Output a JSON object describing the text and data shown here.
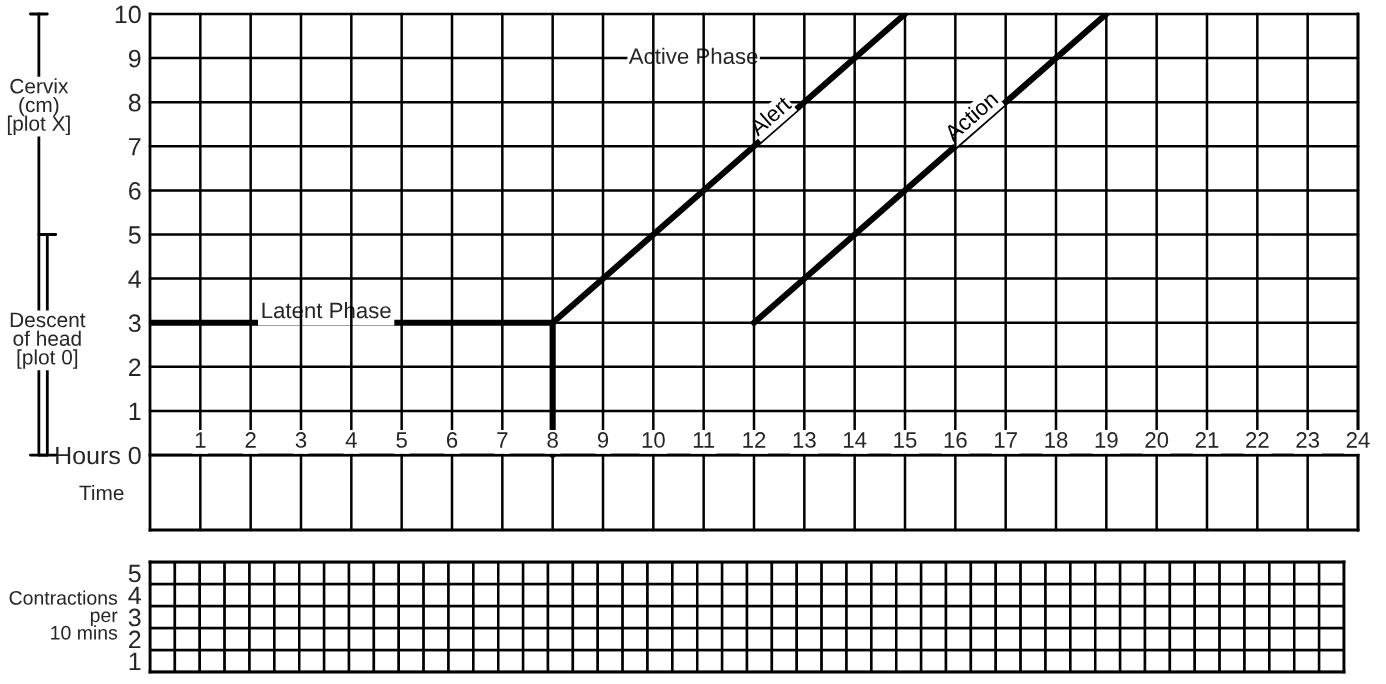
{
  "chart_data": [
    {
      "type": "line",
      "series": [
        {
          "color": "#000000",
          "x": [
            0,
            8,
            8
          ],
          "values": [
            3,
            3,
            0
          ]
        },
        {
          "name": "Alert",
          "color": "#000000",
          "x": [
            8,
            15
          ],
          "values": [
            3,
            10
          ]
        },
        {
          "name": "Action",
          "color": "#000000",
          "x": [
            12,
            19
          ],
          "values": [
            3,
            10
          ]
        }
      ],
      "xlim": [
        0,
        24
      ],
      "ylim": [
        -1.7,
        10
      ],
      "xticks": [
        1,
        2,
        3,
        4,
        5,
        6,
        7,
        8,
        9,
        10,
        11,
        12,
        13,
        14,
        15,
        16,
        17,
        18,
        19,
        20,
        21,
        22,
        23,
        24
      ],
      "yticks": [
        {
          "value": 0,
          "label": "Hours 0"
        },
        1,
        2,
        3,
        4,
        5,
        6,
        7,
        8,
        9,
        10
      ],
      "annotations": [
        {
          "text": "Latent Phase",
          "x": 3.5,
          "y": 3
        },
        "Active Phase",
        "Cervix\n(cm)\n[plot X]",
        "Descent\nof head\n[plot 0]",
        "Time"
      ],
      "grid": true,
      "line_style": "solid",
      "marker": "none"
    },
    {
      "type": "heatmap",
      "ylabel": "Contractions\nper\n10 mins",
      "categories": [
        null,
        null,
        null,
        null,
        null,
        null,
        null,
        null,
        null,
        null,
        null,
        null,
        null,
        null,
        null,
        null,
        null,
        null,
        null,
        null,
        null,
        null,
        null,
        null,
        null,
        null,
        null,
        null,
        null,
        null,
        null,
        null,
        null,
        null,
        null,
        null,
        null,
        null,
        null,
        null,
        null,
        null,
        null,
        null,
        null,
        null,
        null,
        null
      ],
      "y_categories": [
        "5",
        "4",
        "3",
        "2",
        "1"
      ],
      "cells": [
        [
          null,
          null,
          null,
          null,
          null,
          null,
          null,
          null,
          null,
          null,
          null,
          null,
          null,
          null,
          null,
          null,
          null,
          null,
          null,
          null,
          null,
          null,
          null,
          null,
          null,
          null,
          null,
          null,
          null,
          null,
          null,
          null,
          null,
          null,
          null,
          null,
          null,
          null,
          null,
          null,
          null,
          null,
          null,
          null,
          null,
          null,
          null,
          null
        ],
        [
          null,
          null,
          null,
          null,
          null,
          null,
          null,
          null,
          null,
          null,
          null,
          null,
          null,
          null,
          null,
          null,
          null,
          null,
          null,
          null,
          null,
          null,
          null,
          null,
          null,
          null,
          null,
          null,
          null,
          null,
          null,
          null,
          null,
          null,
          null,
          null,
          null,
          null,
          null,
          null,
          null,
          null,
          null,
          null,
          null,
          null,
          null,
          null
        ],
        [
          null,
          null,
          null,
          null,
          null,
          null,
          null,
          null,
          null,
          null,
          null,
          null,
          null,
          null,
          null,
          null,
          null,
          null,
          null,
          null,
          null,
          null,
          null,
          null,
          null,
          null,
          null,
          null,
          null,
          null,
          null,
          null,
          null,
          null,
          null,
          null,
          null,
          null,
          null,
          null,
          null,
          null,
          null,
          null,
          null,
          null,
          null,
          null
        ],
        [
          null,
          null,
          null,
          null,
          null,
          null,
          null,
          null,
          null,
          null,
          null,
          null,
          null,
          null,
          null,
          null,
          null,
          null,
          null,
          null,
          null,
          null,
          null,
          null,
          null,
          null,
          null,
          null,
          null,
          null,
          null,
          null,
          null,
          null,
          null,
          null,
          null,
          null,
          null,
          null,
          null,
          null,
          null,
          null,
          null,
          null,
          null,
          null
        ],
        [
          null,
          null,
          null,
          null,
          null,
          null,
          null,
          null,
          null,
          null,
          null,
          null,
          null,
          null,
          null,
          null,
          null,
          null,
          null,
          null,
          null,
          null,
          null,
          null,
          null,
          null,
          null,
          null,
          null,
          null,
          null,
          null,
          null,
          null,
          null,
          null,
          null,
          null,
          null,
          null,
          null,
          null,
          null,
          null,
          null,
          null,
          null,
          null
        ]
      ],
      "tick_labels": "y"
    }
  ]
}
